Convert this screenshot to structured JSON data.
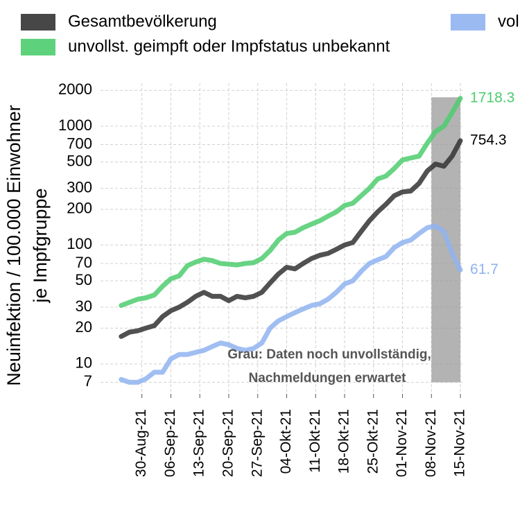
{
  "chart_data": {
    "type": "line",
    "ylabel": [
      "Neuinfektion / 100.000 Einwohner",
      "je  Impfgruppe"
    ],
    "log_y": true,
    "grid": true,
    "legend_position": "top",
    "x": [
      "25-Aug-21",
      "27-Aug-21",
      "29-Aug-21",
      "31-Aug-21",
      "02-Sep-21",
      "04-Sep-21",
      "06-Sep-21",
      "08-Sep-21",
      "10-Sep-21",
      "12-Sep-21",
      "14-Sep-21",
      "16-Sep-21",
      "18-Sep-21",
      "20-Sep-21",
      "22-Sep-21",
      "24-Sep-21",
      "26-Sep-21",
      "28-Sep-21",
      "30-Sep-21",
      "02-Okt-21",
      "04-Okt-21",
      "06-Okt-21",
      "08-Okt-21",
      "10-Okt-21",
      "12-Okt-21",
      "14-Okt-21",
      "16-Okt-21",
      "18-Okt-21",
      "20-Okt-21",
      "22-Okt-21",
      "24-Okt-21",
      "26-Okt-21",
      "28-Okt-21",
      "30-Okt-21",
      "01-Nov-21",
      "03-Nov-21",
      "05-Nov-21",
      "07-Nov-21",
      "09-Nov-21",
      "11-Nov-21",
      "13-Nov-21",
      "15-Nov-21"
    ],
    "series": [
      {
        "name": "Gesamtbevölkerung",
        "color": "#333333",
        "values": [
          17,
          18.5,
          19,
          20,
          21,
          25,
          28,
          30,
          33,
          37,
          40,
          37,
          37,
          34,
          37,
          36,
          37,
          40,
          48,
          57,
          65,
          63,
          70,
          77,
          82,
          85,
          92,
          100,
          105,
          130,
          160,
          190,
          220,
          260,
          280,
          285,
          330,
          420,
          480,
          460,
          560,
          754.3
        ]
      },
      {
        "name": "unvollst. geimpft oder Impfstatus unbekannt",
        "color": "#4dcc6e",
        "values": [
          31,
          33,
          35,
          36,
          38,
          45,
          52,
          55,
          67,
          72,
          76,
          74,
          70,
          69,
          68,
          70,
          71,
          77,
          90,
          110,
          125,
          128,
          140,
          150,
          160,
          175,
          190,
          215,
          225,
          260,
          300,
          360,
          380,
          440,
          520,
          540,
          560,
          720,
          900,
          1000,
          1300,
          1718.3
        ]
      },
      {
        "name": "vollst. geimpft",
        "color": "#8fb3f0",
        "values": [
          7.4,
          7,
          7,
          7.5,
          8.5,
          8.5,
          11,
          12,
          12,
          12.5,
          13,
          14,
          15,
          14.5,
          13.5,
          13,
          13.5,
          15,
          20,
          23,
          25,
          27,
          29,
          31,
          32,
          35,
          40,
          47,
          50,
          60,
          70,
          75,
          80,
          95,
          105,
          110,
          125,
          140,
          145,
          130,
          85,
          61.7
        ]
      }
    ],
    "xlim": [
      "20-Aug-21",
      "16-Nov-21"
    ],
    "xticks": [
      "30-Aug-21",
      "06-Sep-21",
      "13-Sep-21",
      "20-Sep-21",
      "27-Sep-21",
      "04-Okt-21",
      "11-Okt-21",
      "18-Okt-21",
      "25-Okt-21",
      "01-Nov-21",
      "08-Nov-21",
      "15-Nov-21"
    ],
    "ylim": [
      5.6,
      2300
    ],
    "yticks": [
      7,
      10,
      20,
      30,
      50,
      70,
      100,
      200,
      300,
      500,
      700,
      1000,
      2000
    ],
    "shade": {
      "x": [
        "08-Nov-21",
        "15-Nov-21"
      ],
      "y": [
        7,
        1750
      ],
      "color": "#999999"
    },
    "annotation": [
      "Grau: Daten noch unvollständig,",
      "Nachmeldungen erwartet"
    ]
  }
}
